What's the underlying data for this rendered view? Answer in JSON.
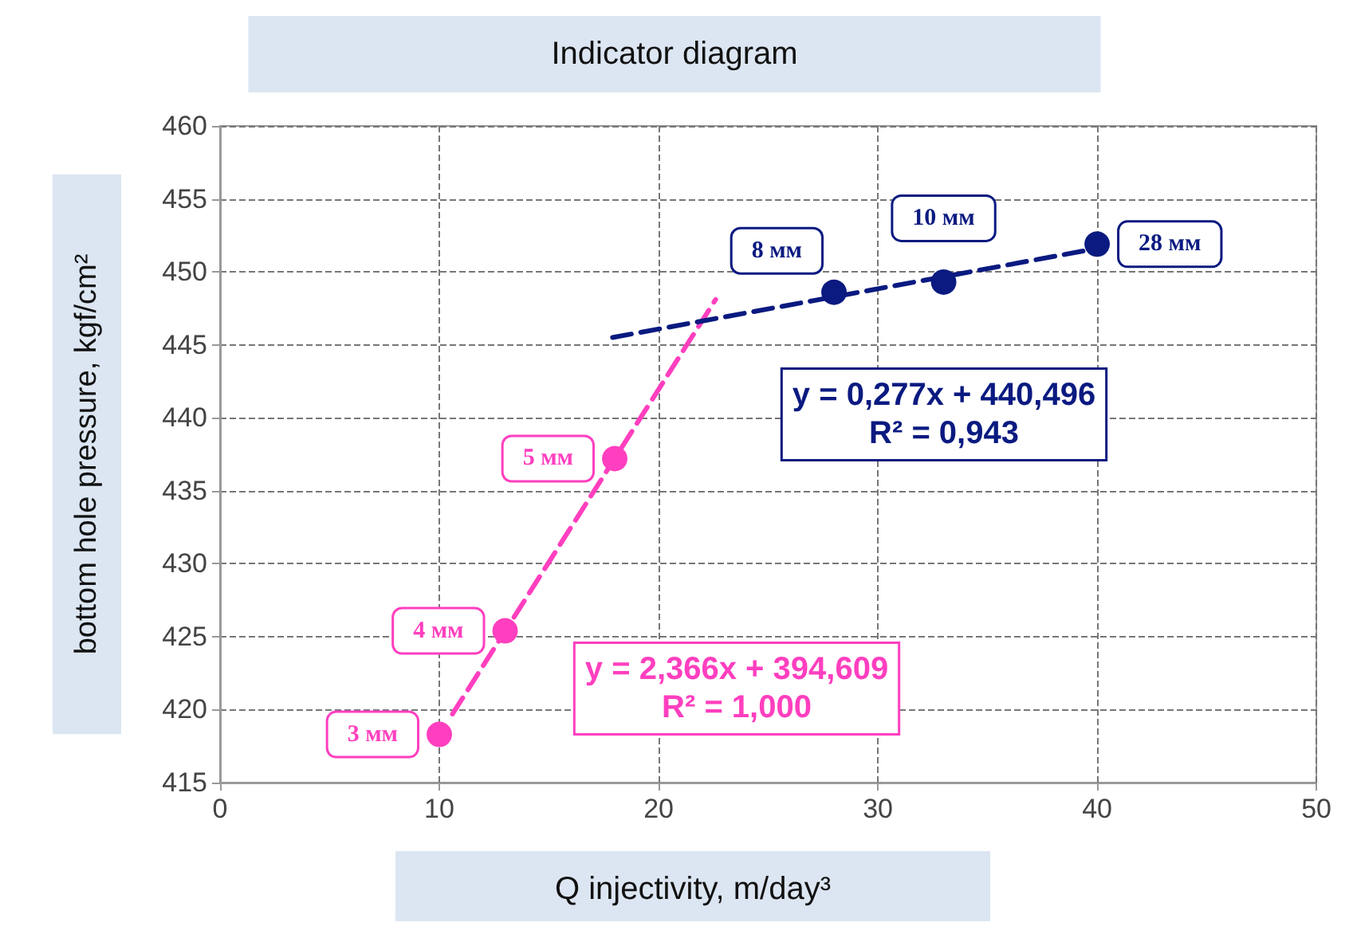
{
  "chart_data": {
    "type": "scatter",
    "title": "Indicator diagram",
    "xlabel": "Q injectivity, m/day³",
    "ylabel": "bottom hole pressure, kgf/cm²",
    "xlim": [
      0,
      50
    ],
    "xticks": [
      0,
      10,
      20,
      30,
      40,
      50
    ],
    "ylim": [
      415,
      460
    ],
    "yticks": [
      415,
      420,
      425,
      430,
      435,
      440,
      445,
      450,
      455,
      460
    ],
    "grid": true,
    "marker": "circle",
    "series": [
      {
        "color": "#ff3fbf",
        "x": [
          10,
          13,
          18
        ],
        "values": [
          418.3,
          425.4,
          437.2
        ]
      },
      {
        "type": "line",
        "color": "#ff3fbf",
        "line_style": "dashed",
        "marker": "none",
        "x": [
          10.6,
          22.6
        ],
        "values": [
          419.7,
          448.1
        ]
      },
      {
        "color": "#0a1a80",
        "x": [
          28,
          33,
          40
        ],
        "values": [
          448.6,
          449.3,
          451.9
        ]
      },
      {
        "type": "line",
        "color": "#0a1a80",
        "line_style": "dashed",
        "marker": "none",
        "x": [
          17.9,
          40
        ],
        "values": [
          445.5,
          451.6
        ]
      }
    ],
    "annotations": [
      "y = 2,366x + 394,609\nR² = 1,000",
      "y = 0,277x + 440,496\nR² = 0,943",
      {
        "text": "3 мм",
        "x": 10,
        "y": 418.3
      },
      {
        "text": "4 мм",
        "x": 13,
        "y": 425.4
      },
      {
        "text": "5 мм",
        "x": 18,
        "y": 437.2
      },
      {
        "text": "8 мм",
        "x": 28,
        "y": 448.6
      },
      {
        "text": "10 мм",
        "x": 33,
        "y": 449.3
      },
      {
        "text": "28 мм",
        "x": 40,
        "y": 451.9
      }
    ]
  }
}
